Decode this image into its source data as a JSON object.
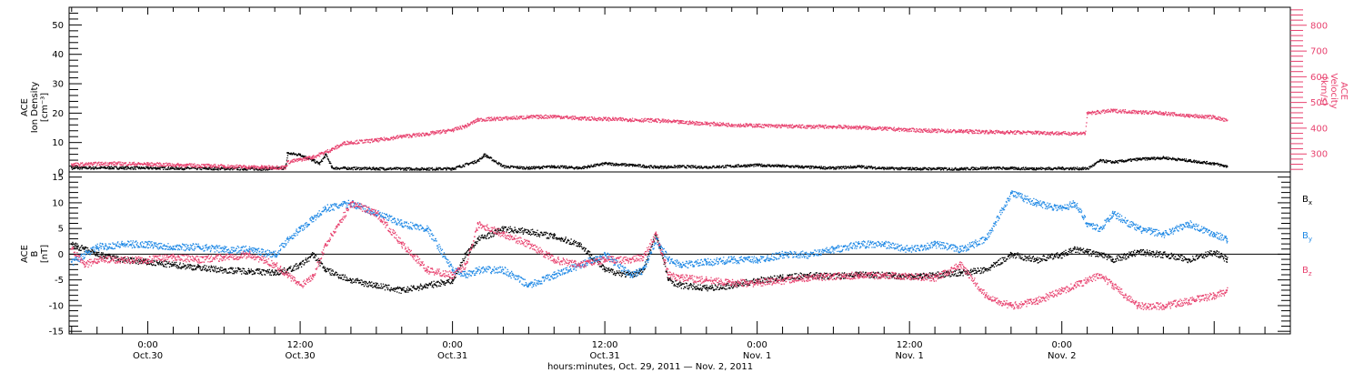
{
  "chart_data": [
    {
      "type": "scatter",
      "panel": "top",
      "ylabel_left": [
        "ACE",
        "Ion Density",
        "[cm⁻³]"
      ],
      "ylabel_right": [
        "ACE",
        "Velocity",
        "[km/s]"
      ],
      "ylim_left": [
        0,
        56
      ],
      "yticks_left": [
        0,
        10,
        20,
        30,
        40,
        50
      ],
      "ylim_right": [
        230,
        870
      ],
      "yticks_right": [
        300,
        400,
        500,
        600,
        700,
        800
      ],
      "right_axis_color": "#e8426f",
      "series": [
        {
          "name": "density",
          "color": "#000000",
          "axis": "left",
          "x": [
            -6,
            -3,
            0,
            3,
            6,
            9,
            10.8,
            11,
            12,
            13,
            13.5,
            14,
            14.5,
            18,
            22,
            24,
            26,
            26.5,
            28,
            30,
            32,
            34,
            36,
            38,
            40,
            42,
            44,
            48,
            52,
            54,
            56,
            58,
            60,
            64,
            66,
            68,
            70,
            72,
            74,
            75,
            76,
            78,
            80,
            82,
            84,
            85
          ],
          "y": [
            1.5,
            1.6,
            1.5,
            1.4,
            1.3,
            1.2,
            1.5,
            6.5,
            6,
            4,
            3,
            6,
            1.5,
            1.3,
            1.2,
            1.3,
            4,
            6,
            2,
            1.5,
            2,
            1.5,
            3,
            2.5,
            1.8,
            2,
            1.8,
            2.5,
            1.8,
            1.5,
            2,
            1.4,
            1.3,
            1.2,
            1.5,
            1.4,
            1.3,
            1.4,
            1.3,
            4,
            3.5,
            4.5,
            5,
            4,
            3,
            2
          ]
        },
        {
          "name": "velocity",
          "color": "#e8426f",
          "axis": "right",
          "x": [
            -6,
            -3,
            0,
            3,
            6,
            9,
            10.8,
            11,
            13,
            14.5,
            15.5,
            18,
            20,
            22,
            24,
            25,
            26,
            28,
            30,
            32,
            34,
            36,
            38,
            40,
            42,
            44,
            46,
            48,
            50,
            52,
            54,
            56,
            58,
            60,
            62,
            64,
            66,
            68,
            70,
            72,
            73.8,
            74,
            76,
            78,
            80,
            82,
            84,
            85
          ],
          "y": [
            260,
            265,
            262,
            258,
            254,
            250,
            250,
            270,
            290,
            320,
            345,
            355,
            370,
            380,
            395,
            410,
            435,
            440,
            445,
            448,
            440,
            438,
            435,
            432,
            425,
            420,
            415,
            412,
            410,
            408,
            408,
            405,
            400,
            395,
            392,
            390,
            388,
            386,
            385,
            382,
            382,
            460,
            470,
            465,
            460,
            450,
            445,
            430
          ]
        }
      ]
    },
    {
      "type": "scatter",
      "panel": "bottom",
      "ylabel": [
        "ACE",
        "B",
        "[nT]"
      ],
      "ylim": [
        -15.5,
        16
      ],
      "yticks": [
        -15,
        -10,
        -5,
        0,
        5,
        10,
        15
      ],
      "xlabel": "hours:minutes, Oct. 29, 2011 — Nov.  2, 2011",
      "xlim": [
        -6.2,
        90
      ],
      "xticks": [
        {
          "x": 0,
          "time": "0:00",
          "date": "Oct.30"
        },
        {
          "x": 12,
          "time": "12:00",
          "date": "Oct.30"
        },
        {
          "x": 24,
          "time": "0:00",
          "date": "Oct.31"
        },
        {
          "x": 36,
          "time": "12:00",
          "date": "Oct.31"
        },
        {
          "x": 48,
          "time": "0:00",
          "date": "Nov. 1"
        },
        {
          "x": 60,
          "time": "12:00",
          "date": "Nov. 1"
        },
        {
          "x": 72,
          "time": "0:00",
          "date": "Nov. 2"
        }
      ],
      "legend": [
        {
          "label": "B",
          "sub": "x",
          "color": "#000000"
        },
        {
          "label": "B",
          "sub": "y",
          "color": "#1e88e5"
        },
        {
          "label": "B",
          "sub": "z",
          "color": "#e8426f"
        }
      ],
      "series": [
        {
          "name": "Bx",
          "color": "#000000",
          "x": [
            -6,
            -5,
            -4,
            -2,
            0,
            2,
            4,
            6,
            8,
            10,
            11,
            12,
            13,
            14,
            16,
            18,
            20,
            22,
            24,
            25,
            26,
            28,
            30,
            32,
            34,
            36,
            38,
            39,
            40,
            41,
            42,
            44,
            46,
            48,
            50,
            52,
            54,
            56,
            58,
            60,
            62,
            64,
            66,
            68,
            70,
            72,
            73,
            74,
            75,
            76,
            78,
            80,
            82,
            84,
            85
          ],
          "y": [
            2,
            1,
            0,
            -1,
            -1.5,
            -2,
            -2.5,
            -3,
            -3.2,
            -3.5,
            -3,
            -2,
            0,
            -3,
            -5,
            -6,
            -7,
            -6,
            -5,
            0,
            3,
            5,
            4.5,
            3.5,
            2,
            -3,
            -4,
            -3,
            4,
            -5,
            -6,
            -6.5,
            -6,
            -5,
            -4.5,
            -4,
            -4.2,
            -3.8,
            -4,
            -4.2,
            -4,
            -3.5,
            -3,
            0,
            -1,
            0,
            1,
            0.5,
            0,
            -1,
            0.5,
            0,
            -1,
            0.5,
            -1
          ]
        },
        {
          "name": "By",
          "color": "#1e88e5",
          "x": [
            -6,
            -5,
            -4,
            -2,
            0,
            2,
            4,
            6,
            8,
            10,
            11,
            12,
            13,
            14,
            16,
            18,
            20,
            22,
            24,
            25,
            26,
            28,
            30,
            32,
            34,
            36,
            38,
            39,
            40,
            41,
            42,
            44,
            46,
            48,
            50,
            52,
            54,
            56,
            58,
            60,
            62,
            64,
            66,
            68,
            70,
            72,
            73,
            74,
            75,
            76,
            78,
            80,
            82,
            84,
            85
          ],
          "y": [
            -1.5,
            0,
            1.5,
            2,
            2,
            1.5,
            1.5,
            1,
            1,
            0,
            3,
            5,
            7,
            9,
            10,
            8,
            6,
            5,
            -3,
            -4,
            -3,
            -3,
            -6,
            -4,
            -2,
            0,
            -4,
            -3,
            3,
            -1,
            -2,
            -1.5,
            -1,
            -1,
            0,
            0,
            1,
            2,
            2,
            1,
            2,
            1,
            3,
            12,
            10,
            9,
            10,
            6,
            5,
            8,
            5,
            4,
            6,
            4,
            3
          ]
        },
        {
          "name": "Bz",
          "color": "#e8426f",
          "x": [
            -6,
            -5,
            -4,
            -2,
            0,
            2,
            4,
            6,
            8,
            10,
            11,
            12,
            13,
            14,
            16,
            18,
            20,
            22,
            24,
            25,
            26,
            28,
            30,
            32,
            34,
            36,
            38,
            39,
            40,
            41,
            42,
            44,
            46,
            48,
            50,
            52,
            54,
            56,
            58,
            60,
            62,
            64,
            66,
            68,
            70,
            72,
            73,
            74,
            75,
            76,
            78,
            80,
            82,
            84,
            85
          ],
          "y": [
            1,
            -2,
            -1,
            -1,
            -1,
            -0.5,
            -1,
            -0.5,
            0,
            -2,
            -4,
            -6,
            -4,
            2,
            10,
            8,
            2,
            -3,
            -4,
            -2,
            6,
            4,
            2,
            -1,
            -2,
            -1,
            -1,
            -0.5,
            4,
            -4,
            -4.5,
            -5,
            -5.5,
            -5.5,
            -5,
            -4.5,
            -4.2,
            -4,
            -4,
            -4.2,
            -4.5,
            -2,
            -8,
            -10,
            -9,
            -7,
            -6,
            -5,
            -4,
            -6,
            -10,
            -10,
            -9,
            -8,
            -7
          ]
        }
      ]
    }
  ]
}
